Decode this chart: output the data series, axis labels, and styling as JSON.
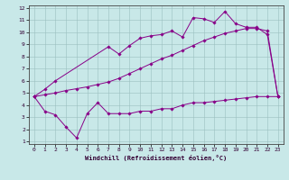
{
  "xlabel": "Windchill (Refroidissement éolien,°C)",
  "background_color": "#c8e8e8",
  "line_color": "#880088",
  "xlim": [
    -0.5,
    23.5
  ],
  "ylim": [
    0.8,
    12.2
  ],
  "xticks": [
    0,
    1,
    2,
    3,
    4,
    5,
    6,
    7,
    8,
    9,
    10,
    11,
    12,
    13,
    14,
    15,
    16,
    17,
    18,
    19,
    20,
    21,
    22,
    23
  ],
  "yticks": [
    1,
    2,
    3,
    4,
    5,
    6,
    7,
    8,
    9,
    10,
    11,
    12
  ],
  "line1_x": [
    0,
    1,
    2,
    3,
    4,
    5,
    6,
    7,
    8,
    9,
    10,
    11,
    12,
    13,
    14,
    15,
    16,
    17,
    18,
    19,
    20,
    21,
    22,
    23
  ],
  "line1_y": [
    4.7,
    3.5,
    3.2,
    2.2,
    1.3,
    3.3,
    4.2,
    3.3,
    3.3,
    3.3,
    3.5,
    3.5,
    3.7,
    3.7,
    4.0,
    4.2,
    4.2,
    4.3,
    4.4,
    4.5,
    4.6,
    4.7,
    4.7,
    4.7
  ],
  "line2_x": [
    0,
    1,
    2,
    7,
    8,
    9,
    10,
    11,
    12,
    13,
    14,
    15,
    16,
    17,
    18,
    19,
    20,
    21,
    22,
    23
  ],
  "line2_y": [
    4.7,
    5.3,
    6.0,
    8.8,
    8.2,
    8.9,
    9.5,
    9.7,
    9.8,
    10.1,
    9.6,
    11.2,
    11.1,
    10.8,
    11.7,
    10.7,
    10.4,
    10.4,
    9.8,
    4.7
  ],
  "line3_x": [
    0,
    1,
    2,
    3,
    4,
    5,
    6,
    7,
    8,
    9,
    10,
    11,
    12,
    13,
    14,
    15,
    16,
    17,
    18,
    19,
    20,
    21,
    22,
    23
  ],
  "line3_y": [
    4.7,
    4.85,
    5.0,
    5.2,
    5.35,
    5.5,
    5.7,
    5.9,
    6.2,
    6.6,
    7.0,
    7.4,
    7.8,
    8.1,
    8.5,
    8.9,
    9.3,
    9.6,
    9.9,
    10.1,
    10.3,
    10.3,
    10.1,
    4.7
  ]
}
